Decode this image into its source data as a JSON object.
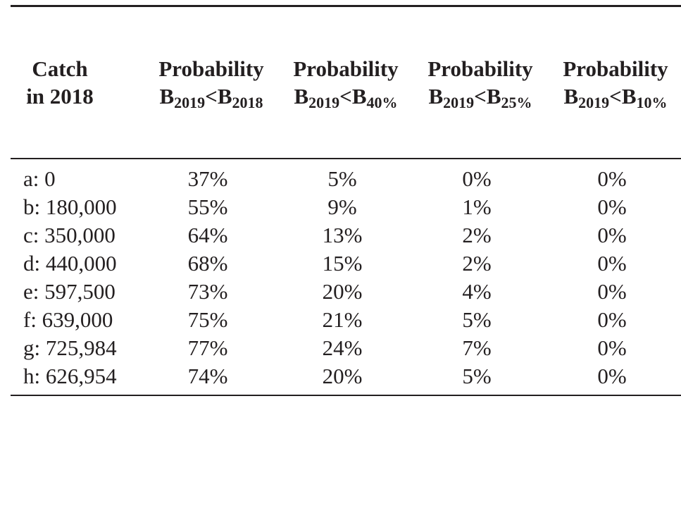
{
  "table": {
    "header": {
      "catch": {
        "line1": "Catch",
        "line2": "in 2018"
      },
      "columns": [
        {
          "title": "Probability",
          "b": "B",
          "sub1": "2019",
          "lt": "<B",
          "sub2": "2018"
        },
        {
          "title": "Probability",
          "b": "B",
          "sub1": "2019",
          "lt": "<B",
          "sub2": "40%"
        },
        {
          "title": "Probability",
          "b": "B",
          "sub1": "2019",
          "lt": "<B",
          "sub2": "25%"
        },
        {
          "title": "Probability",
          "b": "B",
          "sub1": "2019",
          "lt": "<B",
          "sub2": "10%"
        }
      ]
    },
    "rows": [
      {
        "catch": "a: 0",
        "p1": "37%",
        "p2": "5%",
        "p3": "0%",
        "p4": "0%"
      },
      {
        "catch": "b: 180,000",
        "p1": "55%",
        "p2": "9%",
        "p3": "1%",
        "p4": "0%"
      },
      {
        "catch": "c: 350,000",
        "p1": "64%",
        "p2": "13%",
        "p3": "2%",
        "p4": "0%"
      },
      {
        "catch": "d: 440,000",
        "p1": "68%",
        "p2": "15%",
        "p3": "2%",
        "p4": "0%"
      },
      {
        "catch": "e: 597,500",
        "p1": "73%",
        "p2": "20%",
        "p3": "4%",
        "p4": "0%"
      },
      {
        "catch": "f: 639,000",
        "p1": "75%",
        "p2": "21%",
        "p3": "5%",
        "p4": "0%"
      },
      {
        "catch": "g: 725,984",
        "p1": "77%",
        "p2": "24%",
        "p3": "7%",
        "p4": "0%"
      },
      {
        "catch": "h: 626,954",
        "p1": "74%",
        "p2": "20%",
        "p3": "5%",
        "p4": "0%"
      }
    ]
  }
}
